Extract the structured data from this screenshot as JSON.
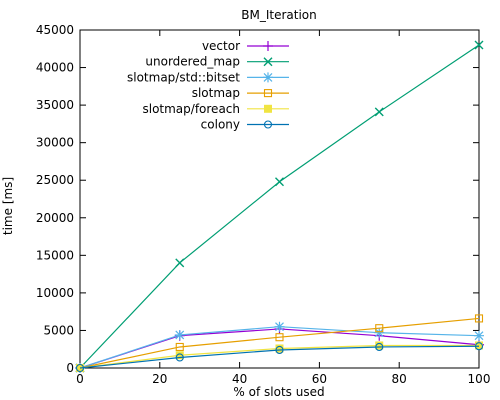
{
  "chart_data": {
    "type": "line",
    "title": "BM_Iteration",
    "xlabel": "% of slots used",
    "ylabel": "time [ms]",
    "xlim": [
      0,
      100
    ],
    "ylim": [
      0,
      45000
    ],
    "x": [
      0,
      25,
      50,
      75,
      100
    ],
    "xticks": [
      0,
      20,
      40,
      60,
      80,
      100
    ],
    "yticks": [
      0,
      5000,
      10000,
      15000,
      20000,
      25000,
      30000,
      35000,
      40000,
      45000
    ],
    "grid": false,
    "legend_position": "top-left",
    "series": [
      {
        "name": "vector",
        "color": "#9400d3",
        "marker": "plus",
        "values": [
          0,
          4300,
          5200,
          4300,
          3100
        ]
      },
      {
        "name": "unordered_map",
        "color": "#009e73",
        "marker": "cross",
        "values": [
          0,
          14000,
          24800,
          34100,
          43000
        ]
      },
      {
        "name": "slotmap/std::bitset",
        "color": "#56b4e9",
        "marker": "star",
        "values": [
          0,
          4400,
          5500,
          4700,
          4300
        ]
      },
      {
        "name": "slotmap",
        "color": "#e69f00",
        "marker": "open-square",
        "values": [
          0,
          2800,
          4100,
          5300,
          6600
        ]
      },
      {
        "name": "slotmap/foreach",
        "color": "#f0e442",
        "marker": "filled-square",
        "values": [
          0,
          1700,
          2600,
          3000,
          3000
        ]
      },
      {
        "name": "colony",
        "color": "#0072b2",
        "marker": "open-circle",
        "values": [
          0,
          1400,
          2400,
          2800,
          2900
        ]
      }
    ]
  }
}
